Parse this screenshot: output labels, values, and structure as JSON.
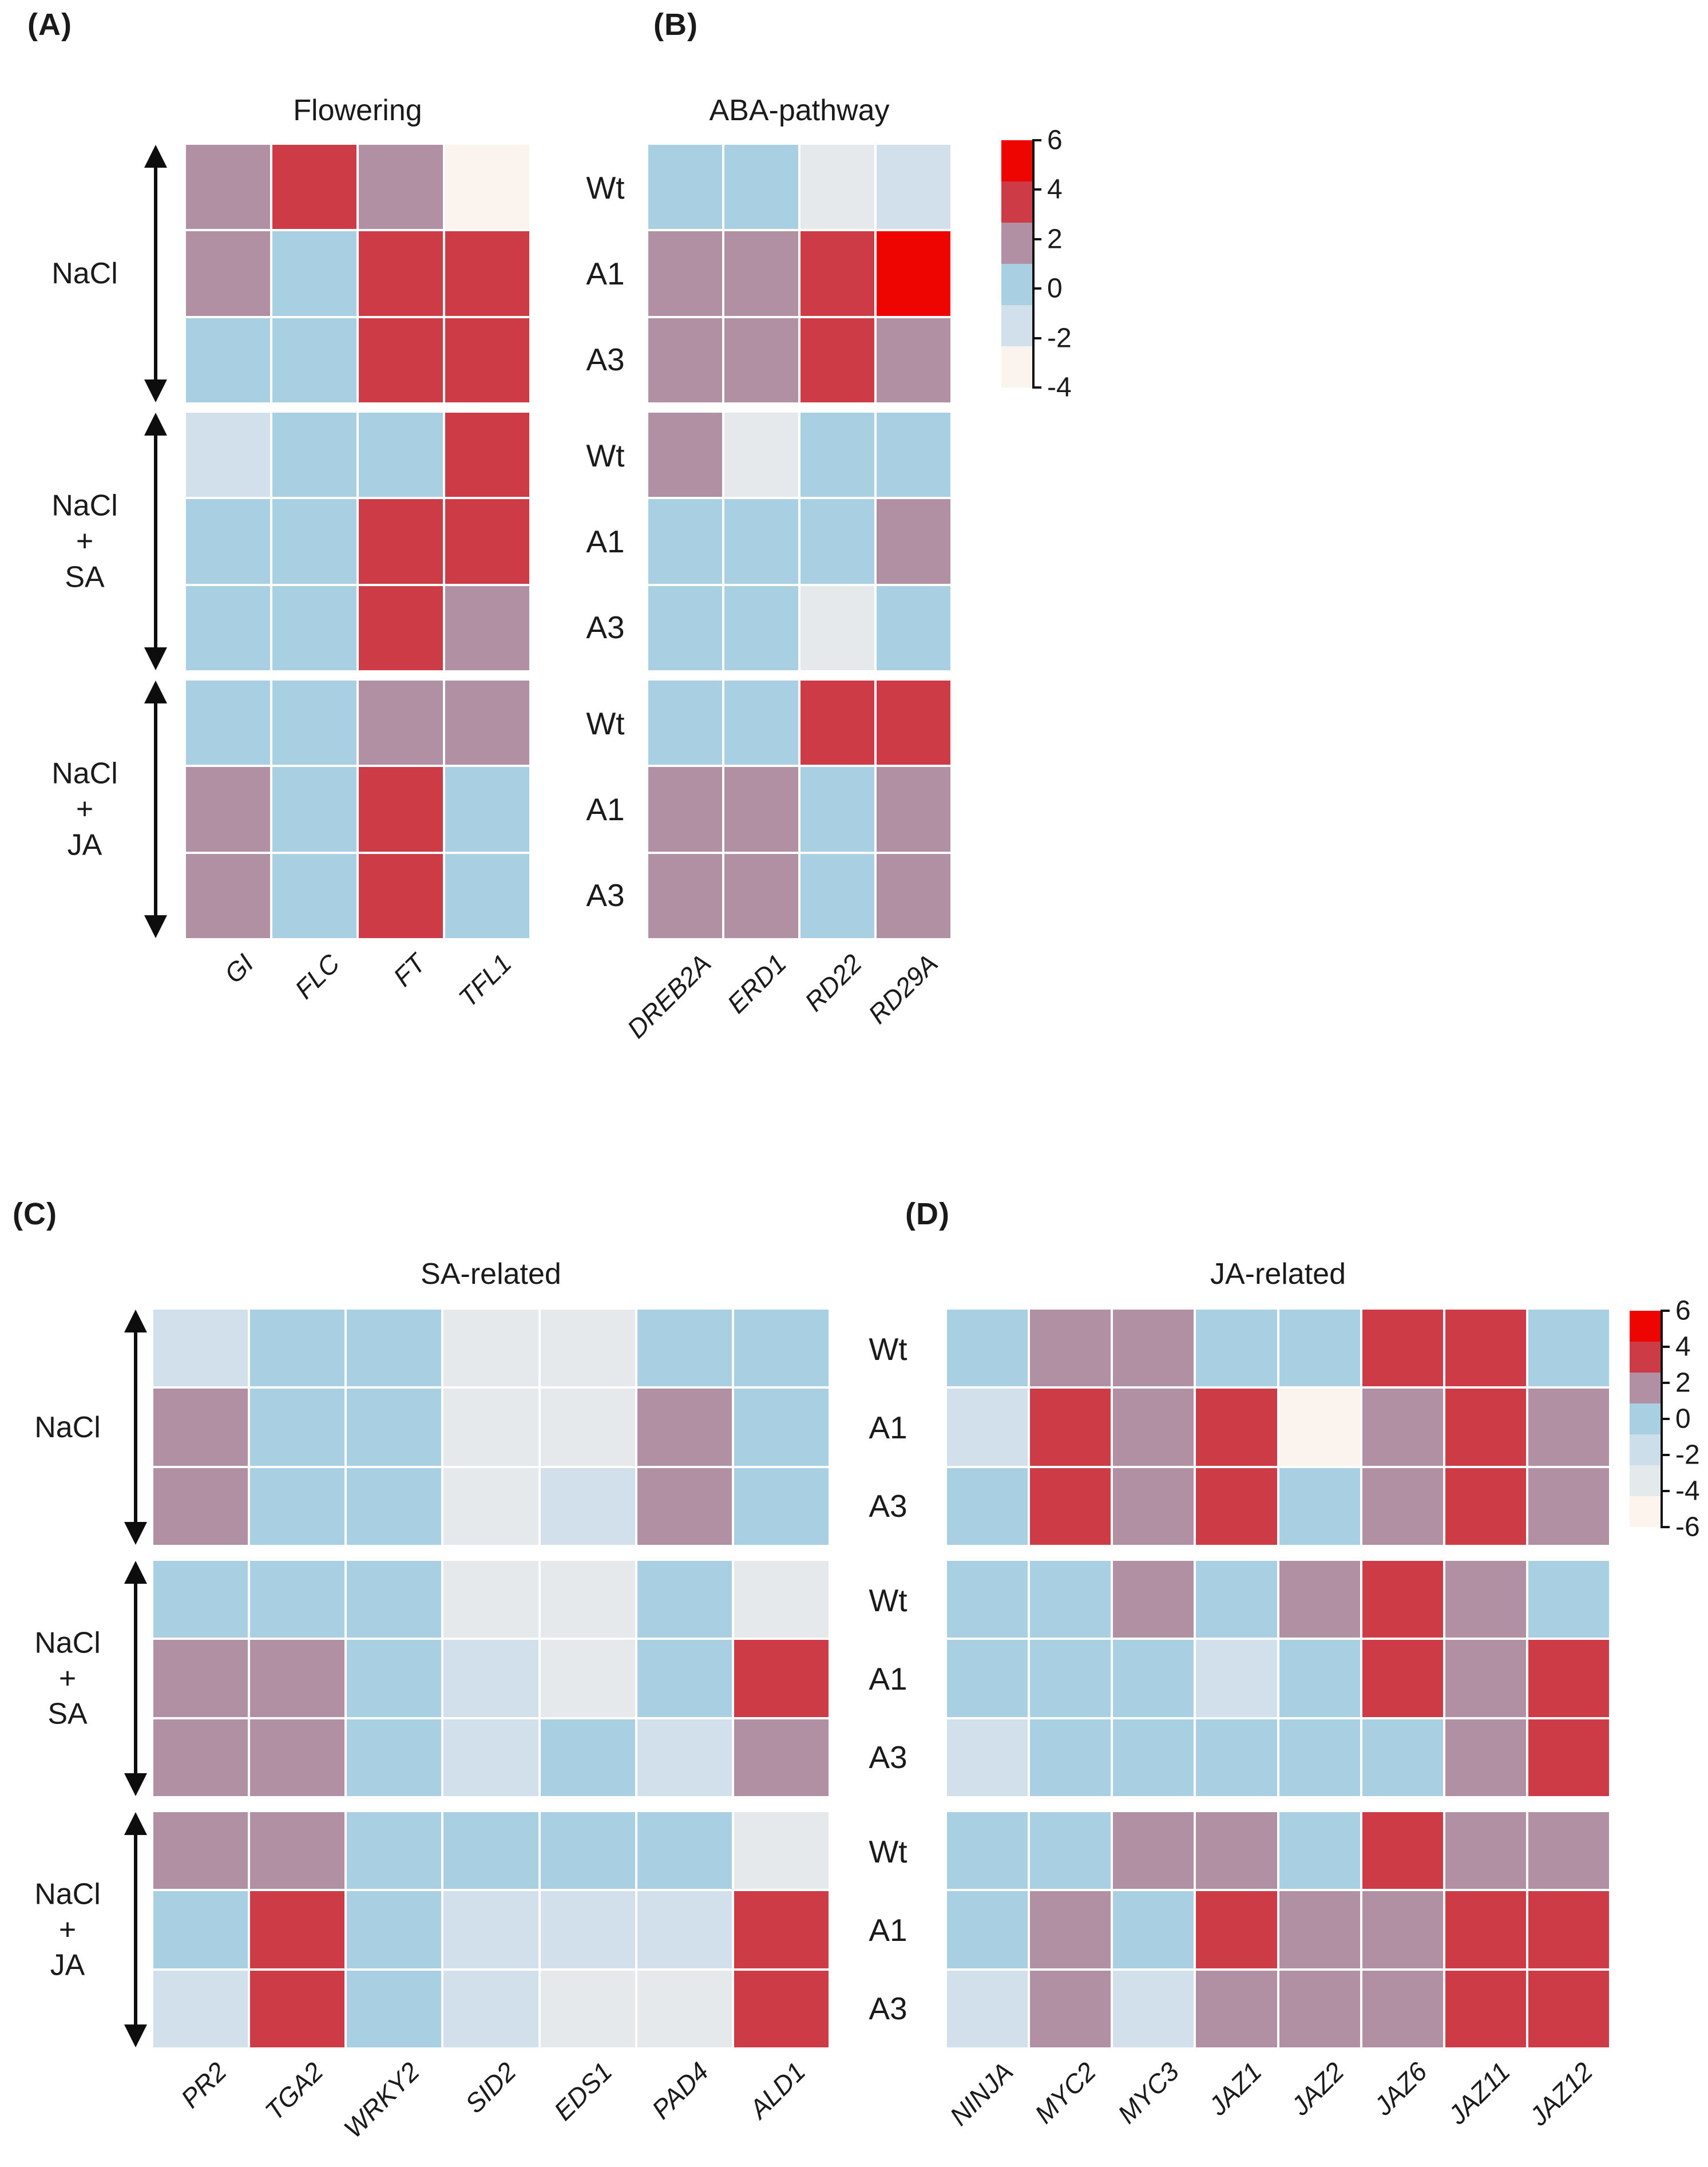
{
  "figure": {
    "panels": [
      {
        "letter": "(A)",
        "title": "Flowering"
      },
      {
        "letter": "(B)",
        "title": "ABA-pathway"
      },
      {
        "letter": "(C)",
        "title": "SA-related"
      },
      {
        "letter": "(D)",
        "title": "JA-related"
      }
    ],
    "genotype_labels": [
      "Wt",
      "A1",
      "A3"
    ],
    "treatment_labels": [
      [
        "NaCl"
      ],
      [
        "NaCl",
        "+",
        "SA"
      ],
      [
        "NaCl",
        "+",
        "JA"
      ]
    ]
  },
  "palette": {
    "6": "#ee0400",
    "4": "#cc3b46",
    "2": "#b190a3",
    "0": "#a9cfe3",
    "-2": "#d2e0ec",
    "-4": "#e5e9ec",
    "-6": "#fbf3ed"
  },
  "legends": [
    {
      "id": "ab",
      "ticks": [
        "6",
        "4",
        "2",
        "0",
        "-2",
        "-4"
      ],
      "bands": [
        "#ee0400",
        "#cc3b46",
        "#b190a3",
        "#a9cfe3",
        "#d2e0ec",
        "#fbf3ed"
      ]
    },
    {
      "id": "d",
      "ticks": [
        "6",
        "4",
        "2",
        "0",
        "-2",
        "-4",
        "-6"
      ],
      "bands": [
        "#ee0400",
        "#cc3b46",
        "#b190a3",
        "#a9cfe3",
        "#cddeeb",
        "#e4e9ec",
        "#fdf4ee"
      ]
    }
  ],
  "chart_data": [
    {
      "type": "heatmap",
      "panel": "A",
      "title": "Flowering",
      "columns": [
        "GI",
        "FLC",
        "FT",
        "TFL1"
      ],
      "rows": [
        "NaCl Wt",
        "NaCl A1",
        "NaCl A3",
        "NaCl+SA Wt",
        "NaCl+SA A1",
        "NaCl+SA A3",
        "NaCl+JA Wt",
        "NaCl+JA A1",
        "NaCl+JA A3"
      ],
      "row_groups": [
        "NaCl",
        "NaCl + SA",
        "NaCl + JA"
      ],
      "genotypes": [
        "Wt",
        "A1",
        "A3"
      ],
      "colorbar_ticks": [
        6,
        4,
        2,
        0,
        -2,
        -4
      ],
      "values": [
        [
          2,
          4,
          2,
          -6
        ],
        [
          2,
          0,
          4,
          4
        ],
        [
          0,
          0,
          4,
          4
        ],
        [
          -2,
          0,
          0,
          4
        ],
        [
          0,
          0,
          4,
          4
        ],
        [
          0,
          0,
          4,
          2
        ],
        [
          0,
          0,
          2,
          2
        ],
        [
          2,
          0,
          4,
          0
        ],
        [
          2,
          0,
          4,
          0
        ]
      ]
    },
    {
      "type": "heatmap",
      "panel": "B",
      "title": "ABA-pathway",
      "columns": [
        "DREB2A",
        "ERD1",
        "RD22",
        "RD29A"
      ],
      "rows": [
        "NaCl Wt",
        "NaCl A1",
        "NaCl A3",
        "NaCl+SA Wt",
        "NaCl+SA A1",
        "NaCl+SA A3",
        "NaCl+JA Wt",
        "NaCl+JA A1",
        "NaCl+JA A3"
      ],
      "row_groups": [
        "NaCl",
        "NaCl + SA",
        "NaCl + JA"
      ],
      "genotypes": [
        "Wt",
        "A1",
        "A3"
      ],
      "colorbar_ticks": [
        6,
        4,
        2,
        0,
        -2,
        -4
      ],
      "values": [
        [
          0,
          0,
          -4,
          -2
        ],
        [
          2,
          2,
          4,
          6
        ],
        [
          2,
          2,
          4,
          2
        ],
        [
          2,
          -4,
          0,
          0
        ],
        [
          0,
          0,
          0,
          2
        ],
        [
          0,
          0,
          -4,
          0
        ],
        [
          0,
          0,
          4,
          4
        ],
        [
          2,
          2,
          0,
          2
        ],
        [
          2,
          2,
          0,
          2
        ]
      ]
    },
    {
      "type": "heatmap",
      "panel": "C",
      "title": "SA-related",
      "columns": [
        "PR2",
        "TGA2",
        "WRKY2",
        "SID2",
        "EDS1",
        "PAD4",
        "ALD1"
      ],
      "rows": [
        "NaCl Wt",
        "NaCl A1",
        "NaCl A3",
        "NaCl+SA Wt",
        "NaCl+SA A1",
        "NaCl+SA A3",
        "NaCl+JA Wt",
        "NaCl+JA A1",
        "NaCl+JA A3"
      ],
      "row_groups": [
        "NaCl",
        "NaCl + SA",
        "NaCl + JA"
      ],
      "genotypes": [
        "Wt",
        "A1",
        "A3"
      ],
      "colorbar_ticks": [
        6,
        4,
        2,
        0,
        -2,
        -4
      ],
      "values": [
        [
          -2,
          0,
          0,
          -4,
          -4,
          0,
          0
        ],
        [
          2,
          0,
          0,
          -4,
          -4,
          2,
          0
        ],
        [
          2,
          0,
          0,
          -4,
          -2,
          2,
          0
        ],
        [
          0,
          0,
          0,
          -4,
          -4,
          0,
          -4
        ],
        [
          2,
          2,
          0,
          -2,
          -4,
          0,
          4
        ],
        [
          2,
          2,
          0,
          -2,
          0,
          -2,
          2
        ],
        [
          2,
          2,
          0,
          0,
          0,
          0,
          -4
        ],
        [
          0,
          4,
          0,
          -2,
          -2,
          -2,
          4
        ],
        [
          -2,
          4,
          0,
          -2,
          -4,
          -4,
          4
        ]
      ]
    },
    {
      "type": "heatmap",
      "panel": "D",
      "title": "JA-related",
      "columns": [
        "NINJA",
        "MYC2",
        "MYC3",
        "JAZ1",
        "JAZ2",
        "JAZ6",
        "JAZ11",
        "JAZ12"
      ],
      "rows": [
        "NaCl Wt",
        "NaCl A1",
        "NaCl A3",
        "NaCl+SA Wt",
        "NaCl+SA A1",
        "NaCl+SA A3",
        "NaCl+JA Wt",
        "NaCl+JA A1",
        "NaCl+JA A3"
      ],
      "row_groups": [
        "NaCl",
        "NaCl + SA",
        "NaCl + JA"
      ],
      "genotypes": [
        "Wt",
        "A1",
        "A3"
      ],
      "colorbar_ticks": [
        6,
        4,
        2,
        0,
        -2,
        -4,
        -6
      ],
      "values": [
        [
          0,
          2,
          2,
          0,
          0,
          4,
          4,
          0
        ],
        [
          -2,
          4,
          2,
          4,
          -6,
          2,
          4,
          2
        ],
        [
          0,
          4,
          2,
          4,
          0,
          2,
          4,
          2
        ],
        [
          0,
          0,
          2,
          0,
          2,
          4,
          2,
          0
        ],
        [
          0,
          0,
          0,
          -2,
          0,
          4,
          2,
          4
        ],
        [
          -2,
          0,
          0,
          0,
          0,
          0,
          2,
          4
        ],
        [
          0,
          0,
          2,
          2,
          0,
          4,
          2,
          2
        ],
        [
          0,
          2,
          0,
          4,
          2,
          2,
          4,
          4
        ],
        [
          -2,
          2,
          -2,
          2,
          2,
          2,
          4,
          4
        ]
      ]
    }
  ]
}
